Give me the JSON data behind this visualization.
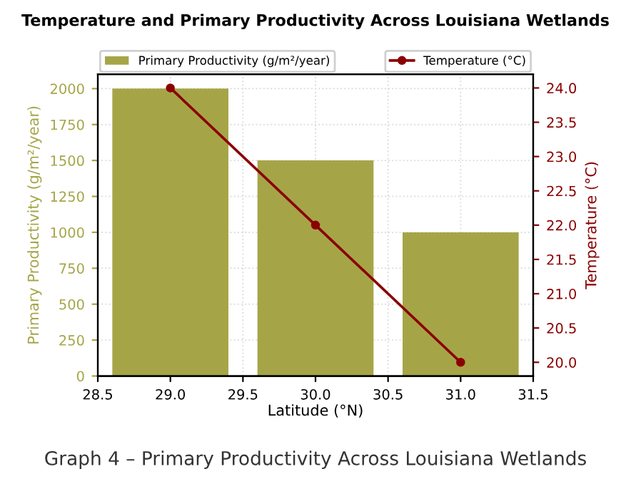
{
  "chart_data": {
    "type": "bar",
    "title": "Temperature and Primary Productivity Across Louisiana Wetlands",
    "xlabel": "Latitude (°N)",
    "ylabel": "Primary Productivity (g/m²/year)",
    "y2label": "Temperature (°C)",
    "x": [
      29.0,
      30.0,
      31.0
    ],
    "series": [
      {
        "name": "Primary Productivity (g/m²/year)",
        "color": "#a5a548",
        "values": [
          2000,
          1500,
          1000
        ]
      },
      {
        "name": "Temperature (°C)",
        "type": "line",
        "axis": "y2",
        "color": "#8b0000",
        "values": [
          24.0,
          22.0,
          20.0
        ]
      }
    ],
    "xlim": [
      28.5,
      31.5
    ],
    "xticks": [
      {
        "value": 28.5,
        "label": "28.5"
      },
      {
        "value": 29.0,
        "label": "29.0"
      },
      {
        "value": 29.5,
        "label": "29.5"
      },
      {
        "value": 30.0,
        "label": "30.0"
      },
      {
        "value": 30.5,
        "label": "30.5"
      },
      {
        "value": 31.0,
        "label": "31.0"
      },
      {
        "value": 31.5,
        "label": "31.5"
      }
    ],
    "ylim": [
      0,
      2100
    ],
    "yticks": [
      0,
      250,
      500,
      750,
      1000,
      1250,
      1500,
      1750,
      2000
    ],
    "y2lim": [
      19.8,
      24.2
    ],
    "y2ticks": [
      {
        "value": 20.0,
        "label": "20.0"
      },
      {
        "value": 20.5,
        "label": "20.5"
      },
      {
        "value": 21.0,
        "label": "21.0"
      },
      {
        "value": 21.5,
        "label": "21.5"
      },
      {
        "value": 22.0,
        "label": "22.0"
      },
      {
        "value": 22.5,
        "label": "22.5"
      },
      {
        "value": 23.0,
        "label": "23.0"
      },
      {
        "value": 23.5,
        "label": "23.5"
      },
      {
        "value": 24.0,
        "label": "24.0"
      }
    ],
    "grid": true,
    "legend": "top",
    "marker": "circle",
    "line_style": "solid",
    "annotations": [
      "Graph 4 – Primary Productivity Across Louisiana Wetlands"
    ]
  }
}
